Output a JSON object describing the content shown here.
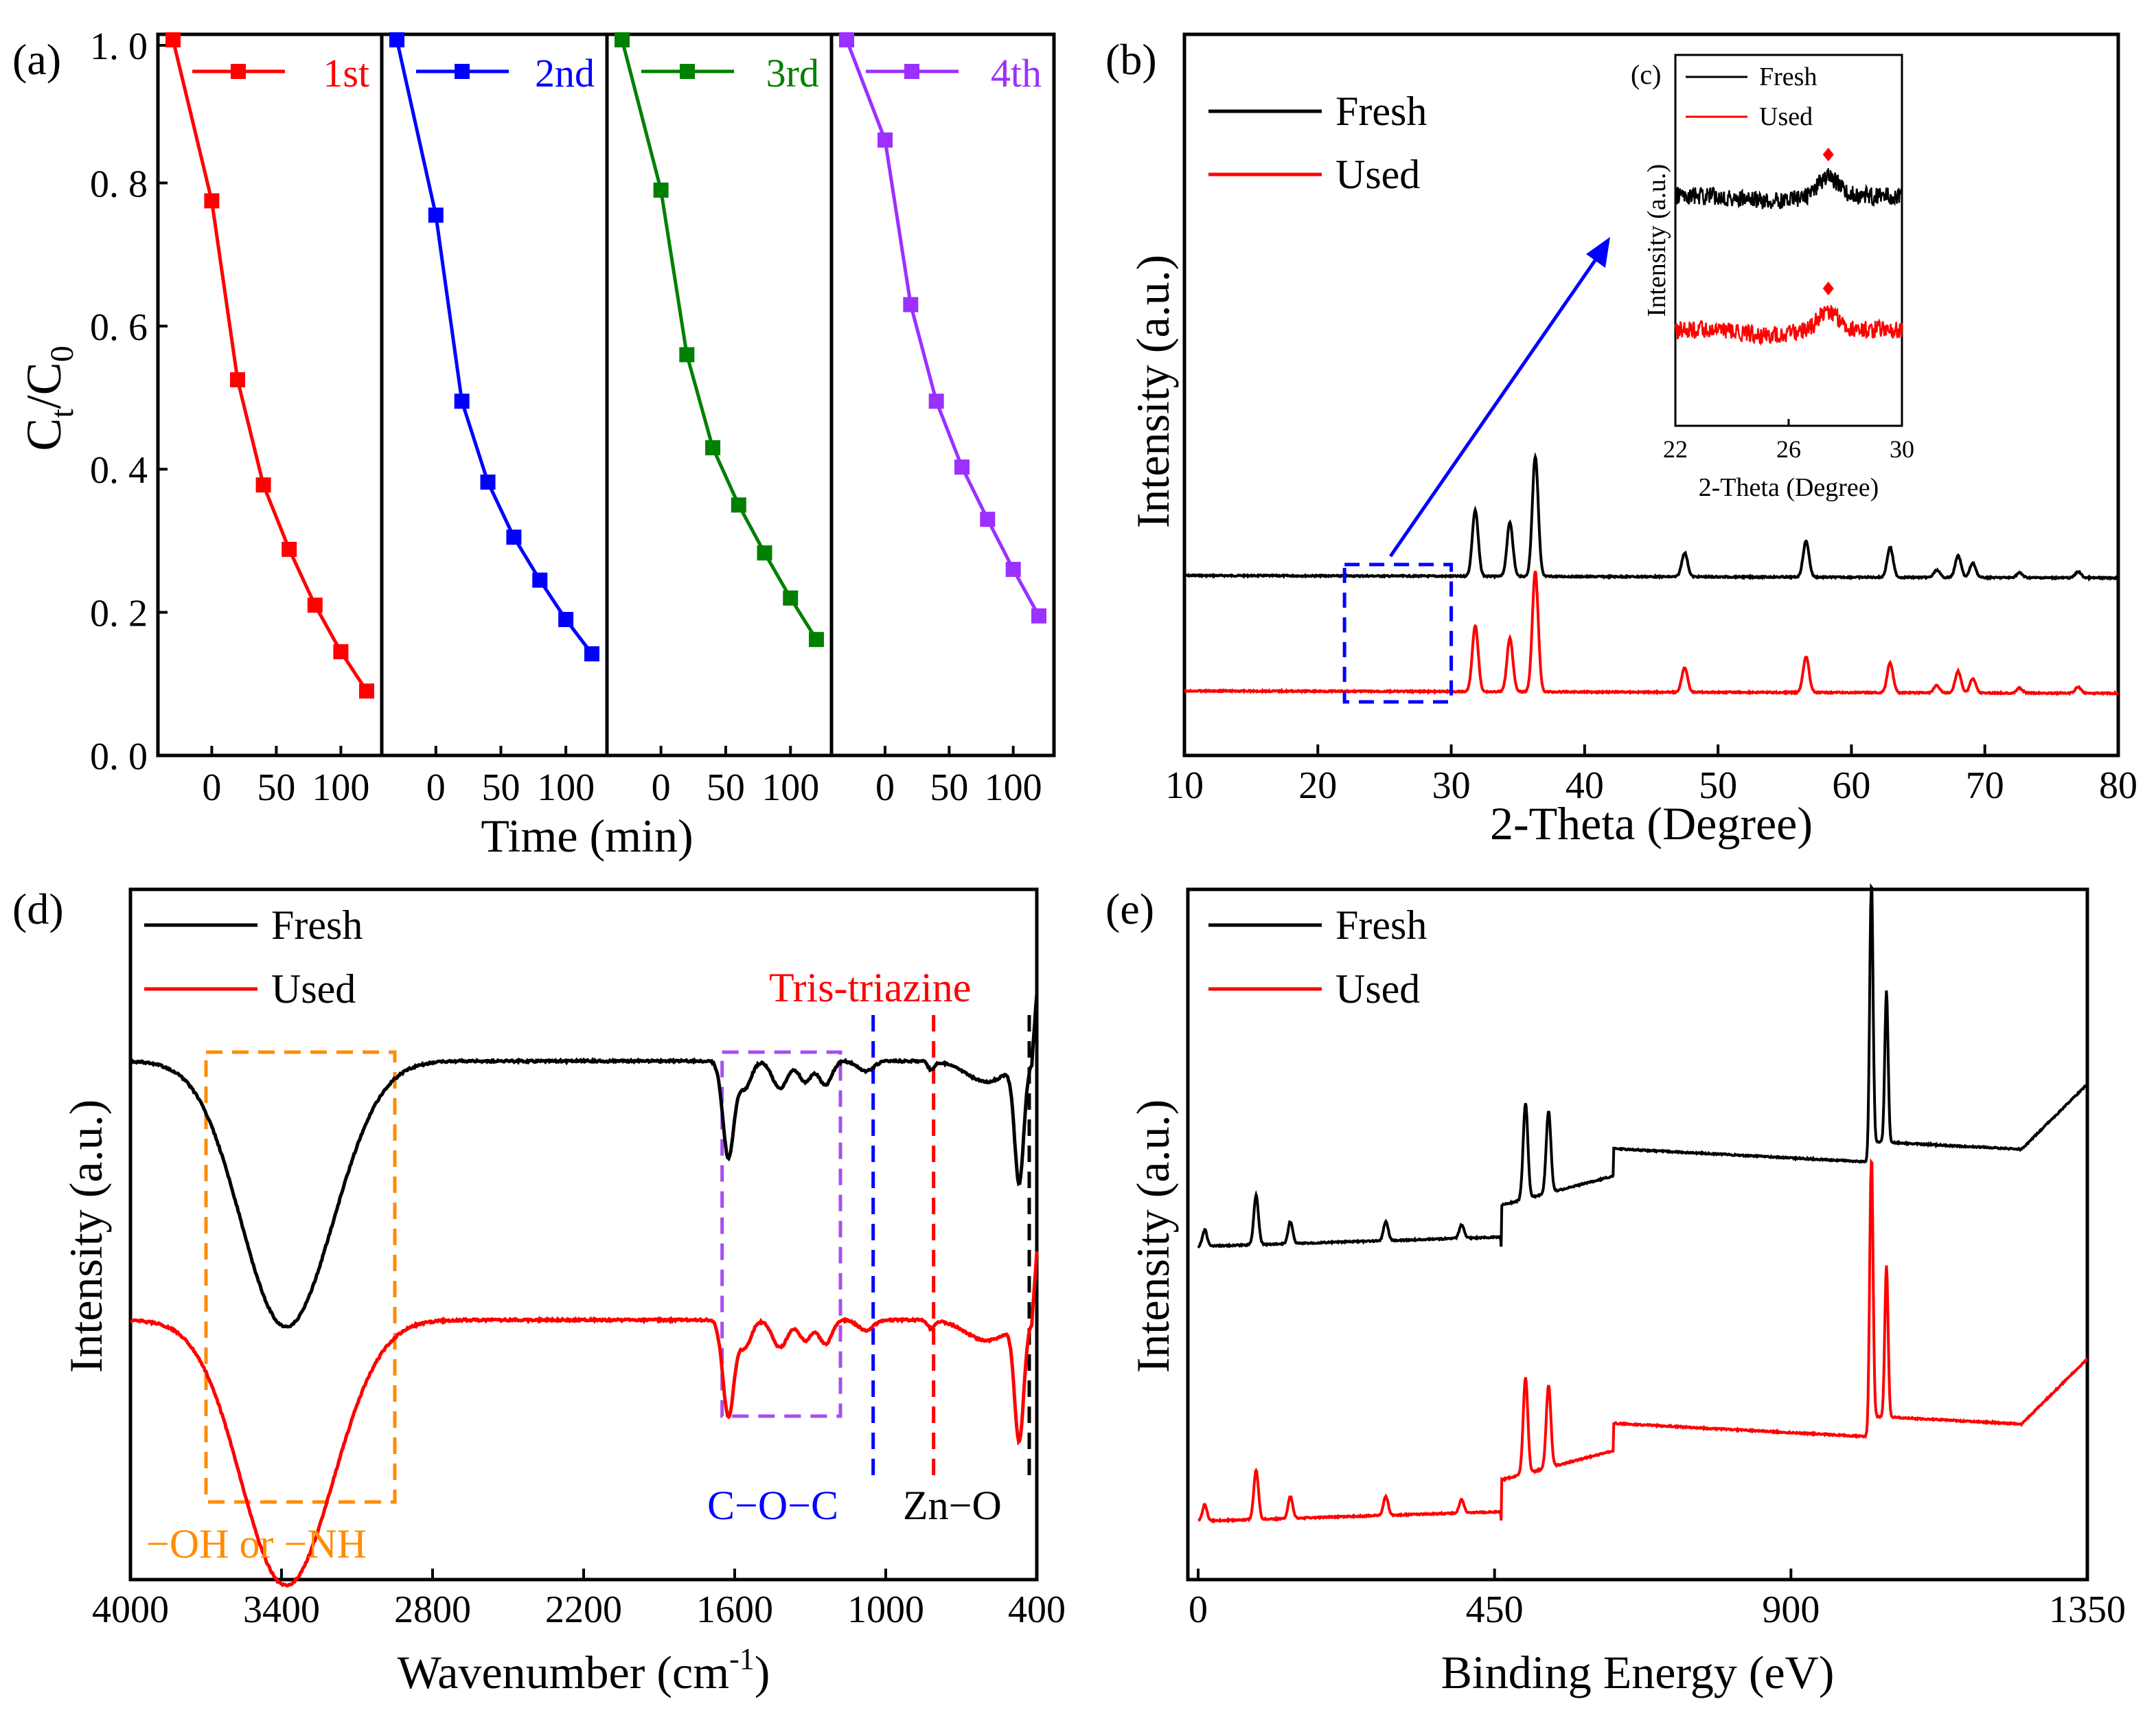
{
  "figure_colors": {
    "black": "#000000",
    "red": "#ff0000",
    "blue": "#0000ff",
    "green": "#008000",
    "purple": "#9b30ff",
    "orange": "#ff8c00",
    "violet": "#a84cf0"
  },
  "chart_data": [
    {
      "id": "a",
      "panel_label": "(a)",
      "type": "line",
      "title": "",
      "xlabel": "Time (min)",
      "ylabel_main": "C",
      "ylabel_sub1": "t",
      "ylabel_mid": "/C",
      "ylabel_sub2": "0",
      "ylim": [
        0,
        1.0
      ],
      "yticks": [
        "0. 0",
        "0. 2",
        "0. 4",
        "0. 6",
        "0. 8",
        "1. 0"
      ],
      "xticks": [
        "0",
        "50",
        "100"
      ],
      "x": [
        -30,
        0,
        20,
        40,
        60,
        80,
        100,
        120
      ],
      "series": [
        {
          "name": "1st",
          "color": "#ff0000",
          "values": [
            1.0,
            0.775,
            0.525,
            0.378,
            0.288,
            0.21,
            0.145,
            0.09
          ]
        },
        {
          "name": "2nd",
          "color": "#0000ff",
          "values": [
            1.0,
            0.755,
            0.495,
            0.382,
            0.305,
            0.245,
            0.19,
            0.142
          ]
        },
        {
          "name": "3rd",
          "color": "#008000",
          "values": [
            1.0,
            0.79,
            0.56,
            0.43,
            0.35,
            0.283,
            0.22,
            0.162
          ]
        },
        {
          "name": "4th",
          "color": "#9b30ff",
          "values": [
            1.0,
            0.86,
            0.63,
            0.495,
            0.403,
            0.33,
            0.26,
            0.195
          ]
        }
      ]
    },
    {
      "id": "b",
      "panel_label": "(b)",
      "type": "line",
      "title": "",
      "xlabel": "2-Theta (Degree)",
      "ylabel": "Intensity (a.u.)",
      "xlim": [
        10,
        80
      ],
      "xticks": [
        "10",
        "20",
        "30",
        "40",
        "50",
        "60",
        "70",
        "80"
      ],
      "series": [
        {
          "name": "Fresh",
          "color": "#000000"
        },
        {
          "name": "Used",
          "color": "#ff0000"
        }
      ],
      "peaks_2theta": [
        31.8,
        34.4,
        36.3,
        47.5,
        56.6,
        62.9,
        66.4,
        68.0,
        69.1,
        72.6,
        77.0
      ],
      "peak_heights": [
        0.55,
        0.45,
        1.0,
        0.2,
        0.3,
        0.25,
        0.06,
        0.18,
        0.12,
        0.04,
        0.05
      ],
      "zoom_box_range": [
        22,
        30
      ]
    },
    {
      "id": "c",
      "panel_label": "(c)",
      "type": "line",
      "title": "",
      "xlabel": "2-Theta (Degree)",
      "ylabel": "Intensity (a.u.)",
      "xlim": [
        22,
        30
      ],
      "xticks": [
        "22",
        "26",
        "30"
      ],
      "series": [
        {
          "name": "Fresh",
          "color": "#000000"
        },
        {
          "name": "Used",
          "color": "#ff0000"
        }
      ],
      "peak_marker_2theta": 27.4
    },
    {
      "id": "d",
      "panel_label": "(d)",
      "type": "line",
      "title": "",
      "xlabel_main": "Wavenumber (cm",
      "xlabel_sup": "-1",
      "xlabel_end": ")",
      "ylabel": "Intensity (a.u.)",
      "xlim": [
        4000,
        400
      ],
      "xticks": [
        "4000",
        "3400",
        "2800",
        "2200",
        "1600",
        "1000",
        "400"
      ],
      "series": [
        {
          "name": "Fresh",
          "color": "#000000"
        },
        {
          "name": "Used",
          "color": "#ff0000"
        }
      ],
      "annotations": {
        "oh_nh": "−OH or −NH",
        "coc": "C−O−C",
        "tris": "Tris-triazine",
        "zno": "Zn−O"
      },
      "bands_cm1": {
        "oh_nh": [
          3700,
          2950
        ],
        "cn_heterocycle": [
          1650,
          1180
        ],
        "coc": 1050,
        "tris_triazine": 810,
        "zn_o": 430
      }
    },
    {
      "id": "e",
      "panel_label": "(e)",
      "type": "line",
      "title": "",
      "xlabel": "Binding Energy (eV)",
      "ylabel": "Intensity (a.u.)",
      "xlim": [
        0,
        1350
      ],
      "xticks": [
        "0",
        "450",
        "900",
        "1350"
      ],
      "series": [
        {
          "name": "Fresh",
          "color": "#000000"
        },
        {
          "name": "Used",
          "color": "#ff0000"
        }
      ],
      "peaks_eV": [
        10,
        88,
        140,
        285,
        400,
        497,
        532,
        1022,
        1045
      ],
      "peak_heights": [
        0.06,
        0.18,
        0.08,
        0.07,
        0.05,
        0.35,
        0.3,
        1.0,
        0.55
      ]
    }
  ]
}
